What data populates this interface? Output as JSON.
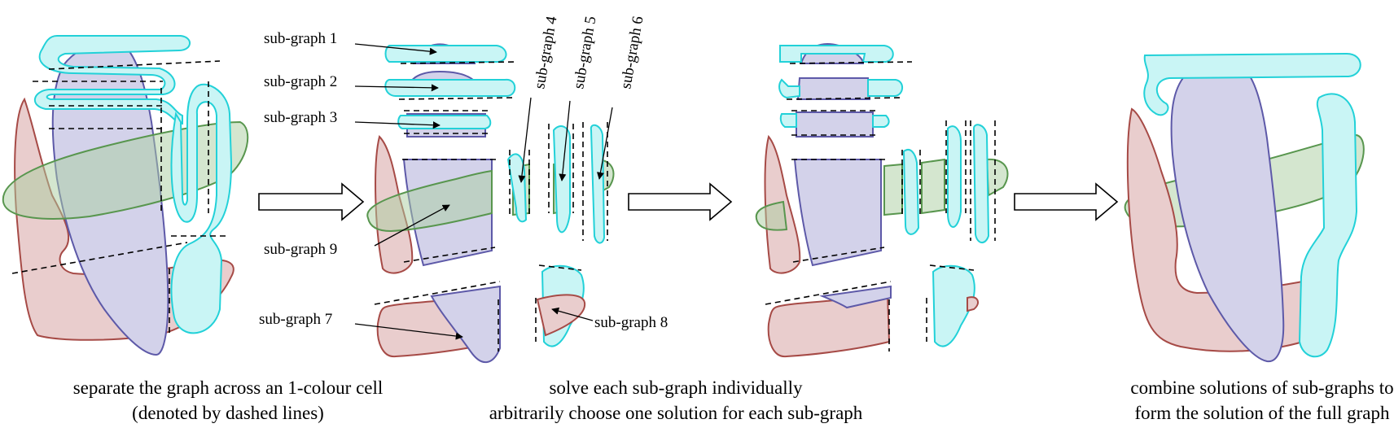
{
  "labels": {
    "sg1": "sub-graph 1",
    "sg2": "sub-graph 2",
    "sg3": "sub-graph 3",
    "sg4": "sub-graph 4",
    "sg5": "sub-graph 5",
    "sg6": "sub-graph 6",
    "sg7": "sub-graph 7",
    "sg8": "sub-graph 8",
    "sg9": "sub-graph 9"
  },
  "captions": {
    "step1_line1": "separate the graph across an 1-colour cell",
    "step1_line2": "(denoted by dashed lines)",
    "step2_line1": "solve each sub-graph individually",
    "step2_line2": "arbitrarily choose one solution for each sub-graph",
    "step3_line1": "combine solutions of sub-graphs to",
    "step3_line2": "form the solution of the full graph"
  },
  "colors": {
    "red_fill": "#e9cdcd",
    "red_stroke": "#a64a46",
    "blue_fill": "#d3d2ea",
    "blue_stroke": "#5d59a8",
    "green_stroke": "#58964e",
    "cyan_fill": "#c9f5f5",
    "cyan_stroke": "#22d1d8"
  }
}
